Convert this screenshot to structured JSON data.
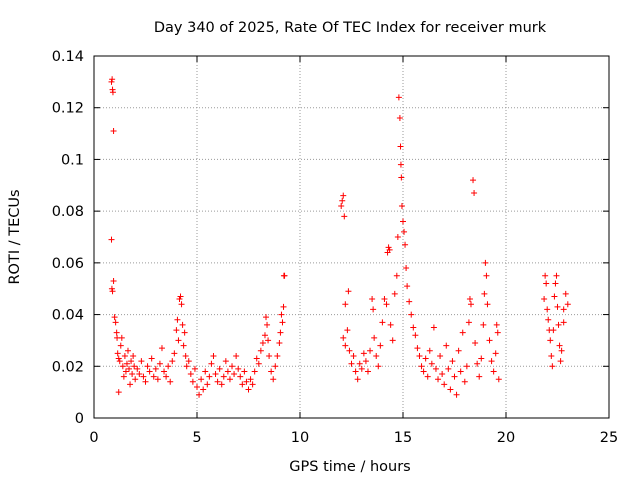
{
  "chart_data": {
    "type": "scatter",
    "title": "Day 340 of 2025, Rate Of TEC Index for receiver murk",
    "xlabel": "GPS time / hours",
    "ylabel": "ROTI / TECUs",
    "xlim": [
      0,
      25
    ],
    "ylim": [
      0,
      0.14
    ],
    "x_ticks": [
      0,
      5,
      10,
      15,
      20,
      25
    ],
    "y_ticks": [
      0,
      0.02,
      0.04,
      0.06,
      0.08,
      0.1,
      0.12,
      0.14
    ],
    "x_tick_labels": [
      "0",
      "5",
      "10",
      "15",
      "20",
      "25"
    ],
    "y_tick_labels": [
      "0",
      "0.02",
      "0.04",
      "0.06",
      "0.08",
      "0.1",
      "0.12",
      "0.14"
    ],
    "grid": true,
    "marker": "plus",
    "color": "#ff0000",
    "series": [
      {
        "points": [
          [
            0.85,
            0.13
          ],
          [
            0.88,
            0.131
          ],
          [
            0.9,
            0.127
          ],
          [
            0.92,
            0.126
          ],
          [
            0.95,
            0.111
          ],
          [
            0.85,
            0.069
          ],
          [
            0.87,
            0.05
          ],
          [
            0.9,
            0.049
          ],
          [
            0.95,
            0.053
          ],
          [
            1.0,
            0.039
          ],
          [
            1.05,
            0.037
          ],
          [
            1.1,
            0.033
          ],
          [
            1.12,
            0.031
          ],
          [
            1.15,
            0.025
          ],
          [
            1.2,
            0.023
          ],
          [
            1.2,
            0.01
          ],
          [
            1.25,
            0.022
          ],
          [
            1.3,
            0.028
          ],
          [
            1.35,
            0.031
          ],
          [
            1.4,
            0.02
          ],
          [
            1.45,
            0.016
          ],
          [
            1.5,
            0.024
          ],
          [
            1.55,
            0.018
          ],
          [
            1.6,
            0.021
          ],
          [
            1.65,
            0.026
          ],
          [
            1.7,
            0.019
          ],
          [
            1.75,
            0.013
          ],
          [
            1.8,
            0.022
          ],
          [
            1.85,
            0.017
          ],
          [
            1.9,
            0.024
          ],
          [
            1.95,
            0.02
          ],
          [
            2.0,
            0.015
          ],
          [
            2.1,
            0.019
          ],
          [
            2.2,
            0.017
          ],
          [
            2.3,
            0.022
          ],
          [
            2.4,
            0.016
          ],
          [
            2.5,
            0.014
          ],
          [
            2.6,
            0.02
          ],
          [
            2.7,
            0.018
          ],
          [
            2.8,
            0.023
          ],
          [
            2.9,
            0.016
          ],
          [
            3.0,
            0.019
          ],
          [
            3.1,
            0.015
          ],
          [
            3.2,
            0.021
          ],
          [
            3.3,
            0.027
          ],
          [
            3.4,
            0.018
          ],
          [
            3.5,
            0.016
          ],
          [
            3.6,
            0.02
          ],
          [
            3.7,
            0.014
          ],
          [
            3.8,
            0.022
          ],
          [
            3.9,
            0.025
          ],
          [
            4.0,
            0.034
          ],
          [
            4.05,
            0.038
          ],
          [
            4.1,
            0.03
          ],
          [
            4.15,
            0.046
          ],
          [
            4.2,
            0.047
          ],
          [
            4.25,
            0.044
          ],
          [
            4.3,
            0.036
          ],
          [
            4.35,
            0.028
          ],
          [
            4.4,
            0.033
          ],
          [
            4.45,
            0.024
          ],
          [
            4.5,
            0.02
          ],
          [
            4.6,
            0.022
          ],
          [
            4.7,
            0.017
          ],
          [
            4.8,
            0.014
          ],
          [
            4.9,
            0.019
          ],
          [
            5.0,
            0.012
          ],
          [
            5.1,
            0.009
          ],
          [
            5.2,
            0.015
          ],
          [
            5.3,
            0.011
          ],
          [
            5.4,
            0.018
          ],
          [
            5.5,
            0.013
          ],
          [
            5.6,
            0.016
          ],
          [
            5.7,
            0.021
          ],
          [
            5.8,
            0.024
          ],
          [
            5.9,
            0.017
          ],
          [
            6.0,
            0.014
          ],
          [
            6.1,
            0.019
          ],
          [
            6.2,
            0.013
          ],
          [
            6.3,
            0.016
          ],
          [
            6.4,
            0.022
          ],
          [
            6.5,
            0.018
          ],
          [
            6.6,
            0.015
          ],
          [
            6.7,
            0.02
          ],
          [
            6.8,
            0.017
          ],
          [
            6.9,
            0.024
          ],
          [
            7.0,
            0.019
          ],
          [
            7.1,
            0.016
          ],
          [
            7.2,
            0.013
          ],
          [
            7.3,
            0.018
          ],
          [
            7.4,
            0.014
          ],
          [
            7.5,
            0.011
          ],
          [
            7.6,
            0.015
          ],
          [
            7.7,
            0.013
          ],
          [
            7.8,
            0.018
          ],
          [
            7.9,
            0.023
          ],
          [
            8.0,
            0.021
          ],
          [
            8.1,
            0.026
          ],
          [
            8.2,
            0.029
          ],
          [
            8.3,
            0.032
          ],
          [
            8.35,
            0.039
          ],
          [
            8.4,
            0.036
          ],
          [
            8.45,
            0.03
          ],
          [
            8.5,
            0.024
          ],
          [
            8.6,
            0.018
          ],
          [
            8.7,
            0.015
          ],
          [
            8.8,
            0.02
          ],
          [
            8.9,
            0.024
          ],
          [
            9.0,
            0.029
          ],
          [
            9.05,
            0.033
          ],
          [
            9.1,
            0.04
          ],
          [
            9.15,
            0.037
          ],
          [
            9.2,
            0.043
          ],
          [
            9.22,
            0.055
          ],
          [
            9.25,
            0.055
          ],
          [
            12.0,
            0.082
          ],
          [
            12.05,
            0.084
          ],
          [
            12.1,
            0.086
          ],
          [
            12.15,
            0.078
          ],
          [
            12.2,
            0.044
          ],
          [
            12.1,
            0.031
          ],
          [
            12.2,
            0.028
          ],
          [
            12.3,
            0.034
          ],
          [
            12.35,
            0.049
          ],
          [
            12.4,
            0.026
          ],
          [
            12.5,
            0.021
          ],
          [
            12.6,
            0.024
          ],
          [
            12.7,
            0.018
          ],
          [
            12.8,
            0.015
          ],
          [
            12.9,
            0.021
          ],
          [
            13.0,
            0.019
          ],
          [
            13.1,
            0.025
          ],
          [
            13.2,
            0.022
          ],
          [
            13.3,
            0.018
          ],
          [
            13.4,
            0.026
          ],
          [
            13.5,
            0.046
          ],
          [
            13.55,
            0.042
          ],
          [
            13.6,
            0.031
          ],
          [
            13.7,
            0.024
          ],
          [
            13.8,
            0.02
          ],
          [
            13.9,
            0.028
          ],
          [
            14.0,
            0.037
          ],
          [
            14.1,
            0.046
          ],
          [
            14.2,
            0.044
          ],
          [
            14.25,
            0.064
          ],
          [
            14.3,
            0.066
          ],
          [
            14.35,
            0.065
          ],
          [
            14.4,
            0.036
          ],
          [
            14.5,
            0.03
          ],
          [
            14.6,
            0.048
          ],
          [
            14.7,
            0.055
          ],
          [
            14.75,
            0.07
          ],
          [
            14.8,
            0.124
          ],
          [
            14.85,
            0.116
          ],
          [
            14.88,
            0.105
          ],
          [
            14.9,
            0.098
          ],
          [
            14.92,
            0.093
          ],
          [
            14.95,
            0.082
          ],
          [
            15.0,
            0.076
          ],
          [
            15.05,
            0.072
          ],
          [
            15.1,
            0.067
          ],
          [
            15.15,
            0.058
          ],
          [
            15.2,
            0.051
          ],
          [
            15.3,
            0.045
          ],
          [
            15.4,
            0.04
          ],
          [
            15.5,
            0.035
          ],
          [
            15.6,
            0.032
          ],
          [
            15.7,
            0.027
          ],
          [
            15.8,
            0.024
          ],
          [
            15.9,
            0.02
          ],
          [
            16.0,
            0.018
          ],
          [
            16.1,
            0.023
          ],
          [
            16.2,
            0.016
          ],
          [
            16.3,
            0.026
          ],
          [
            16.4,
            0.021
          ],
          [
            16.5,
            0.035
          ],
          [
            16.6,
            0.019
          ],
          [
            16.7,
            0.015
          ],
          [
            16.8,
            0.024
          ],
          [
            16.9,
            0.017
          ],
          [
            17.0,
            0.013
          ],
          [
            17.1,
            0.028
          ],
          [
            17.2,
            0.019
          ],
          [
            17.3,
            0.011
          ],
          [
            17.4,
            0.022
          ],
          [
            17.5,
            0.016
          ],
          [
            17.6,
            0.009
          ],
          [
            17.7,
            0.026
          ],
          [
            17.8,
            0.018
          ],
          [
            17.9,
            0.033
          ],
          [
            18.0,
            0.014
          ],
          [
            18.1,
            0.02
          ],
          [
            18.2,
            0.037
          ],
          [
            18.25,
            0.046
          ],
          [
            18.3,
            0.044
          ],
          [
            18.4,
            0.092
          ],
          [
            18.45,
            0.087
          ],
          [
            18.5,
            0.029
          ],
          [
            18.6,
            0.021
          ],
          [
            18.7,
            0.016
          ],
          [
            18.8,
            0.023
          ],
          [
            18.9,
            0.036
          ],
          [
            18.95,
            0.048
          ],
          [
            19.0,
            0.06
          ],
          [
            19.05,
            0.055
          ],
          [
            19.1,
            0.044
          ],
          [
            19.2,
            0.03
          ],
          [
            19.3,
            0.022
          ],
          [
            19.4,
            0.018
          ],
          [
            19.5,
            0.025
          ],
          [
            19.55,
            0.036
          ],
          [
            19.6,
            0.033
          ],
          [
            19.65,
            0.015
          ],
          [
            21.85,
            0.046
          ],
          [
            21.9,
            0.055
          ],
          [
            21.95,
            0.052
          ],
          [
            22.0,
            0.042
          ],
          [
            22.05,
            0.038
          ],
          [
            22.1,
            0.034
          ],
          [
            22.15,
            0.03
          ],
          [
            22.2,
            0.024
          ],
          [
            22.25,
            0.02
          ],
          [
            22.3,
            0.034
          ],
          [
            22.35,
            0.047
          ],
          [
            22.4,
            0.052
          ],
          [
            22.45,
            0.055
          ],
          [
            22.5,
            0.043
          ],
          [
            22.55,
            0.036
          ],
          [
            22.6,
            0.028
          ],
          [
            22.65,
            0.022
          ],
          [
            22.7,
            0.026
          ],
          [
            22.8,
            0.042
          ],
          [
            22.9,
            0.048
          ],
          [
            23.0,
            0.044
          ],
          [
            22.8,
            0.037
          ]
        ]
      }
    ]
  }
}
